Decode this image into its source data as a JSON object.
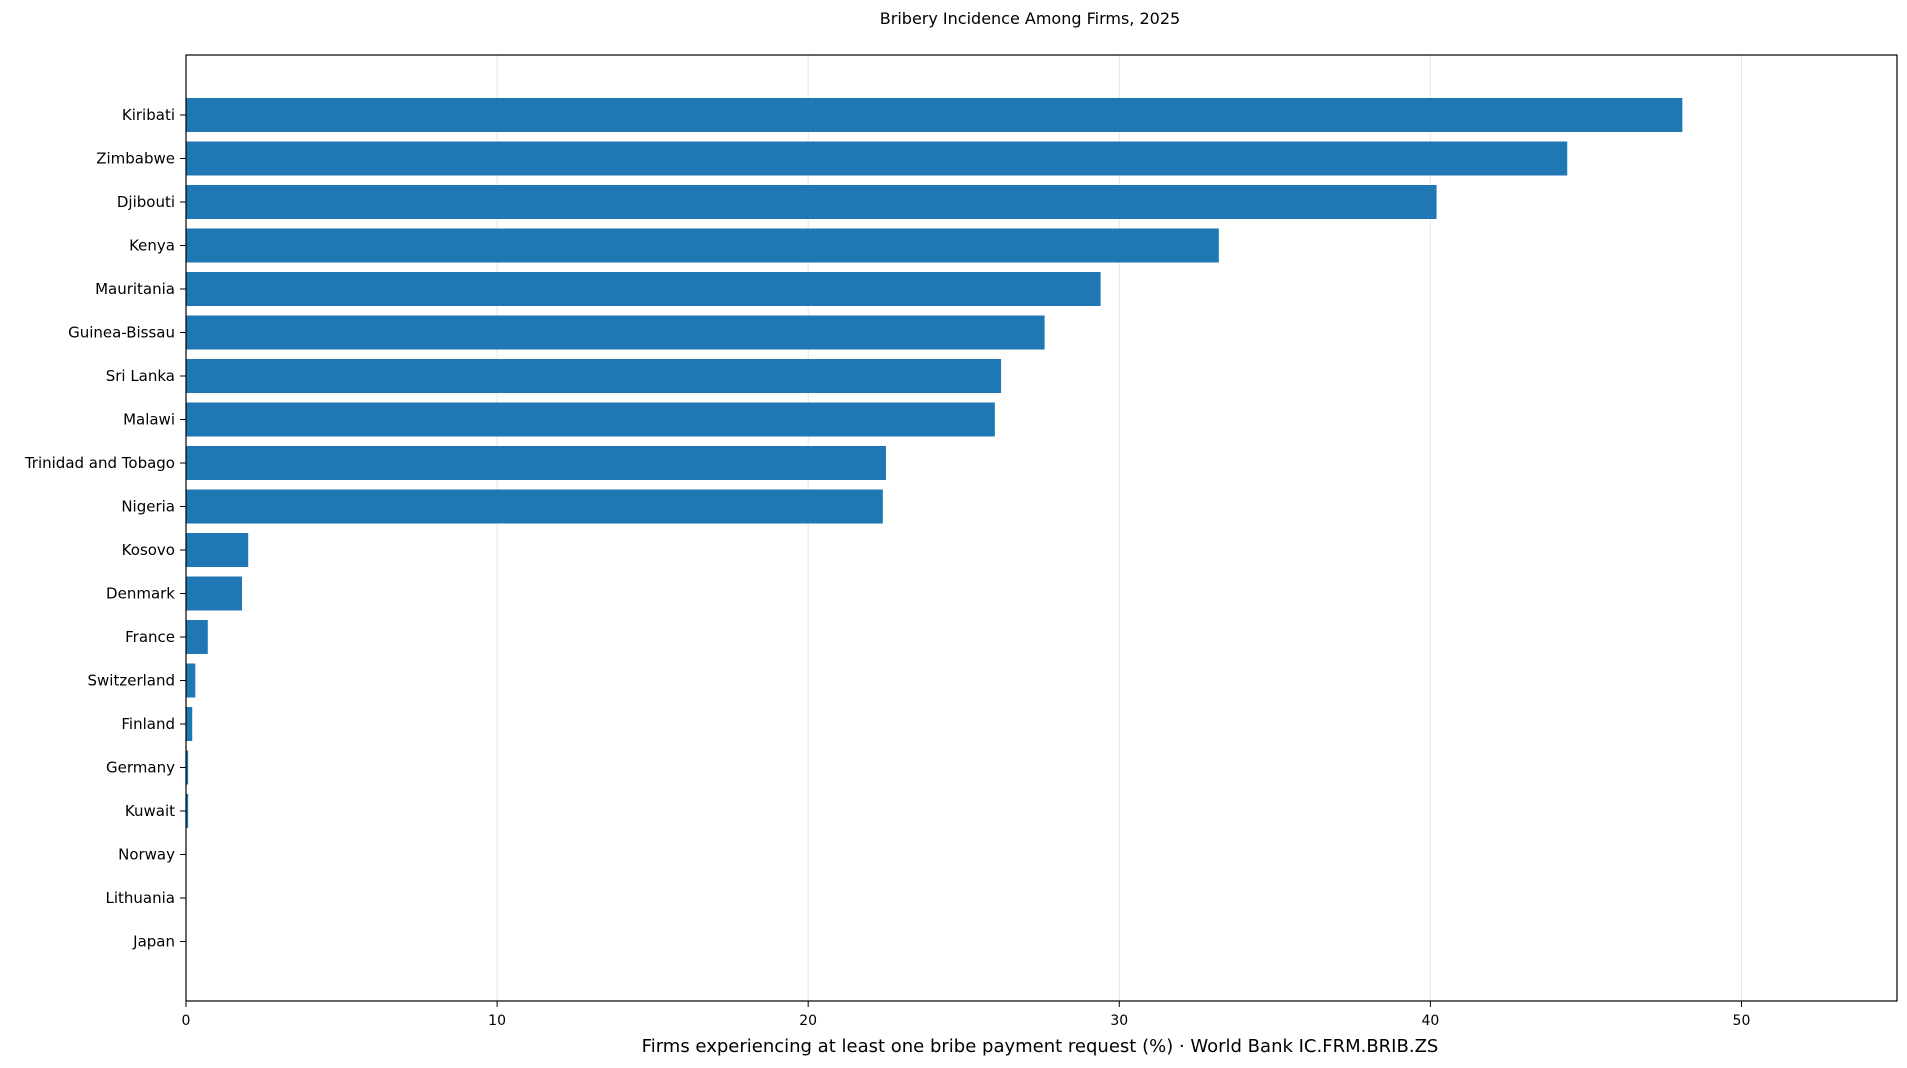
{
  "chart_data": {
    "type": "bar",
    "orientation": "horizontal",
    "title": "Bribery Incidence Among Firms, 2025",
    "xlabel": "Firms experiencing at least one bribe payment request (%) · World Bank IC.FRM.BRIB.ZS",
    "ylabel": "",
    "xlim": [
      0,
      55
    ],
    "xticks": [
      0,
      10,
      20,
      30,
      40,
      50
    ],
    "grid": "x",
    "bar_color": "#1f77b4",
    "categories": [
      "Kiribati",
      "Zimbabwe",
      "Djibouti",
      "Kenya",
      "Mauritania",
      "Guinea-Bissau",
      "Sri Lanka",
      "Malawi",
      "Trinidad and Tobago",
      "Nigeria",
      "Kosovo",
      "Denmark",
      "France",
      "Switzerland",
      "Finland",
      "Germany",
      "Kuwait",
      "Norway",
      "Lithuania",
      "Japan"
    ],
    "values": [
      48.1,
      44.4,
      40.2,
      33.2,
      29.4,
      27.6,
      26.2,
      26.0,
      22.5,
      22.4,
      2.0,
      1.8,
      0.7,
      0.3,
      0.2,
      0.07,
      0.07,
      0.0,
      0.0,
      0.0
    ]
  }
}
